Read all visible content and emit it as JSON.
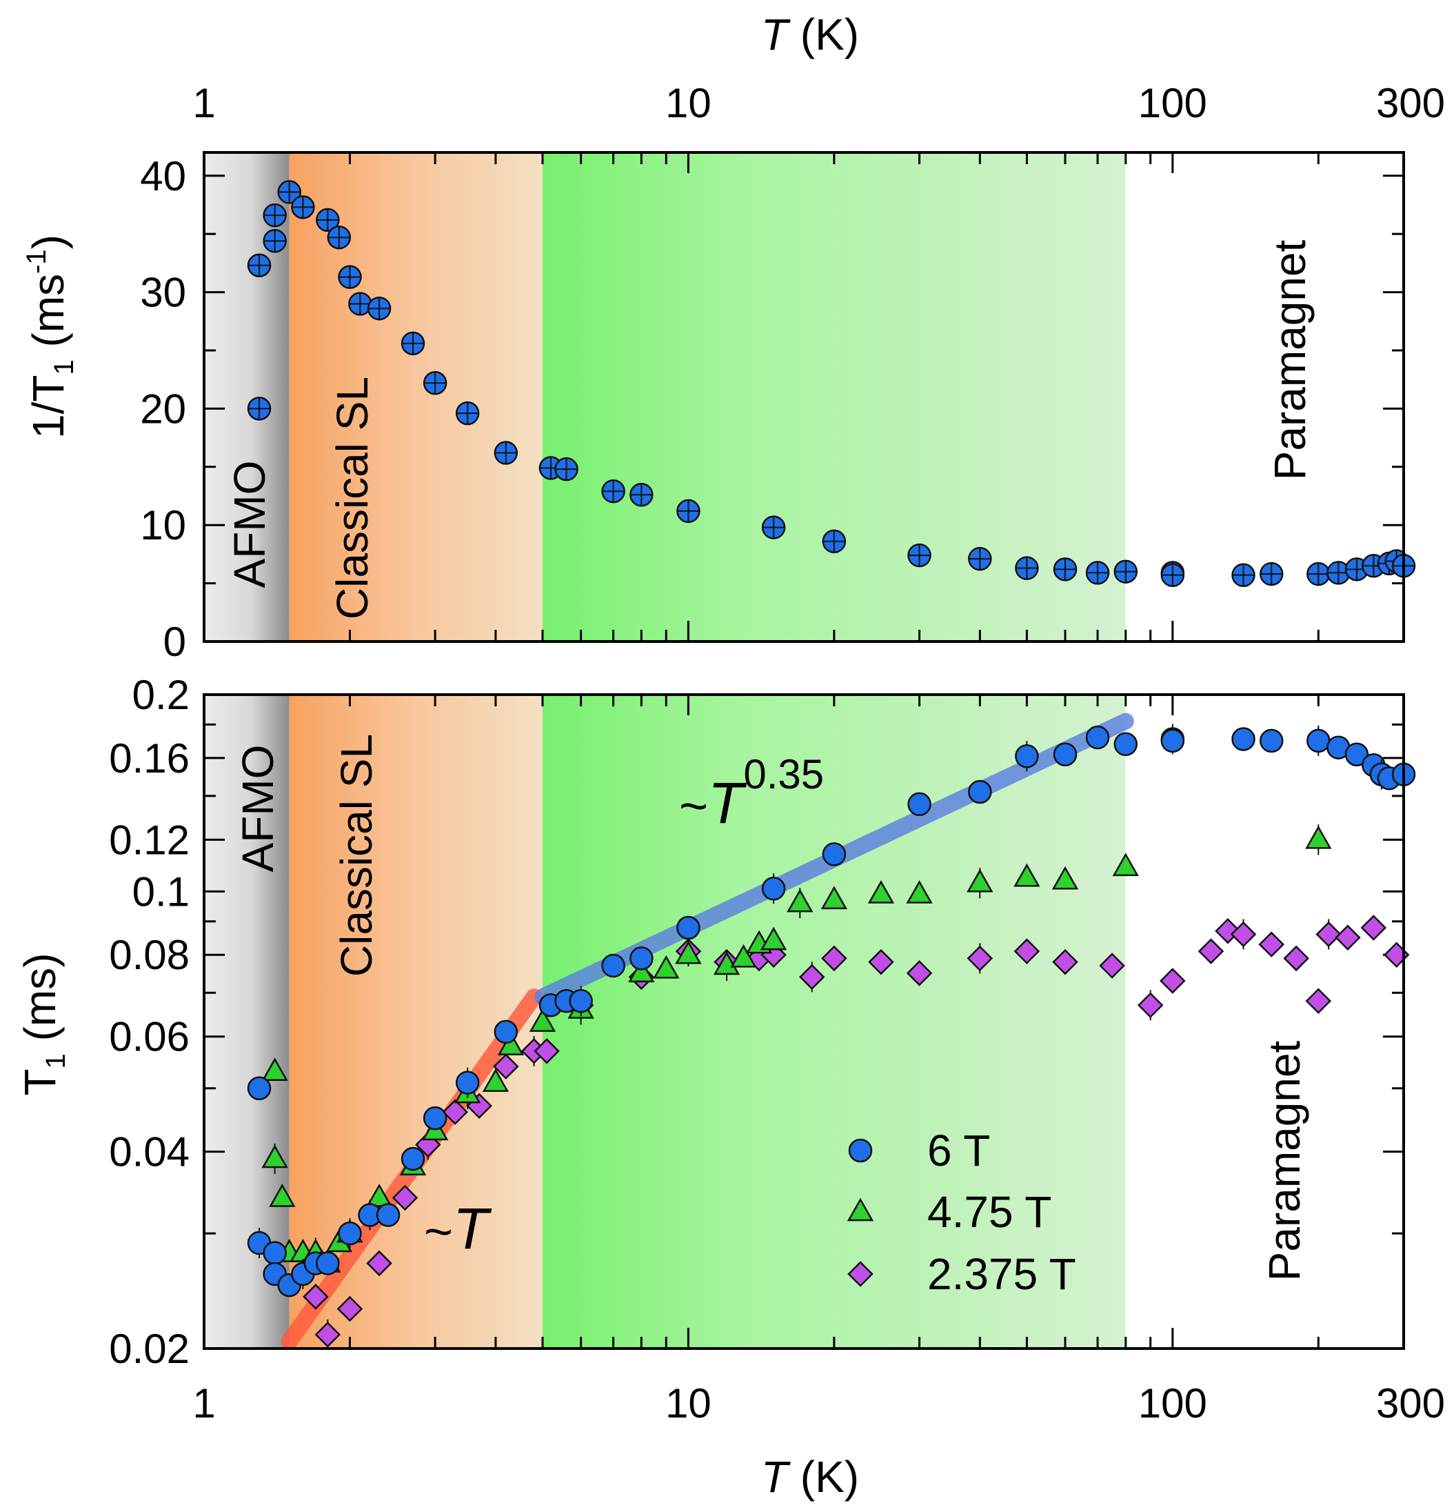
{
  "chart_data": [
    {
      "panel": "top",
      "type": "scatter",
      "title": "",
      "xlabel_top": {
        "italic": "T",
        "rest": " (K)"
      },
      "ylabel": "1/T",
      "ylabel_sub": "1",
      "ylabel_units": " (ms",
      "ylabel_sup": "-1",
      "ylabel_close": ")",
      "xscale": "log",
      "xlim": [
        1,
        300
      ],
      "ylim": [
        0,
        42
      ],
      "x_ticks": [
        1,
        10,
        100,
        300
      ],
      "x_tick_labels": [
        "1",
        "10",
        "100",
        "300"
      ],
      "y_ticks": [
        0,
        10,
        20,
        30,
        40
      ],
      "y_tick_labels": [
        "0",
        "10",
        "20",
        "30",
        "40"
      ],
      "regions": [
        {
          "name": "AFMO",
          "label": "AFMO",
          "from": 1,
          "to": 1.5
        },
        {
          "name": "classical-sl",
          "label": "Classical SL",
          "from": 1.5,
          "to": 5
        },
        {
          "name": "green",
          "label": "",
          "from": 5,
          "to": 80
        },
        {
          "name": "paramagnet",
          "label": "Paramagnet",
          "from": 80,
          "to": 300
        }
      ],
      "series": [
        {
          "name": "6 T",
          "color": "#1f6fe8",
          "marker": "circle",
          "x": [
            1.3,
            1.3,
            1.4,
            1.4,
            1.5,
            1.6,
            1.8,
            1.9,
            2.0,
            2.1,
            2.3,
            2.7,
            3.0,
            3.5,
            4.2,
            5.2,
            5.6,
            7.0,
            8.0,
            10,
            15,
            20,
            30,
            40,
            50,
            60,
            70,
            80,
            100,
            100,
            140,
            160,
            200,
            220,
            240,
            260,
            280,
            290,
            300
          ],
          "y": [
            20.0,
            32.3,
            34.4,
            36.6,
            38.6,
            37.3,
            36.2,
            34.7,
            31.3,
            29.0,
            28.6,
            25.6,
            22.2,
            19.6,
            16.2,
            14.9,
            14.8,
            12.9,
            12.6,
            11.2,
            9.8,
            8.6,
            7.4,
            7.1,
            6.3,
            6.2,
            5.9,
            6.0,
            5.9,
            5.7,
            5.7,
            5.8,
            5.8,
            5.9,
            6.2,
            6.5,
            6.7,
            6.9,
            6.5
          ]
        }
      ]
    },
    {
      "panel": "bottom",
      "type": "scatter",
      "title": "",
      "xlabel": {
        "italic": "T",
        "rest": " (K)"
      },
      "ylabel": "T",
      "ylabel_sub": "1",
      "ylabel_units": " (ms)",
      "xscale": "log",
      "yscale": "log",
      "xlim": [
        1,
        300
      ],
      "ylim": [
        0.02,
        0.2
      ],
      "x_ticks": [
        1,
        10,
        100,
        300
      ],
      "x_tick_labels": [
        "1",
        "10",
        "100",
        "300"
      ],
      "y_ticks": [
        0.02,
        0.04,
        0.06,
        0.08,
        0.1,
        0.12,
        0.16,
        0.2
      ],
      "y_tick_labels": [
        "0.02",
        "0.04",
        "0.06",
        "0.08",
        "0.1",
        "0.12",
        "0.16",
        "0.2"
      ],
      "regions": [
        {
          "name": "AFMO",
          "label": "AFMO",
          "from": 1,
          "to": 1.5
        },
        {
          "name": "classical-sl",
          "label": "Classical SL",
          "from": 1.5,
          "to": 5
        },
        {
          "name": "green",
          "label": "",
          "from": 5,
          "to": 80
        },
        {
          "name": "paramagnet",
          "label": "Paramagnet",
          "from": 80,
          "to": 300
        }
      ],
      "fits": [
        {
          "name": "linear-fit",
          "label_prefix": "~",
          "label_var": "T",
          "label_exp": "",
          "color": "#ff5a3c",
          "x": [
            1.5,
            4.8
          ],
          "y": [
            0.0205,
            0.069
          ]
        },
        {
          "name": "power-fit",
          "label_prefix": "~",
          "label_var": "T",
          "label_exp": "0.35",
          "color": "#5b7fe0",
          "x": [
            5.0,
            80
          ],
          "y": [
            0.069
          ],
          "exponent": 0.35
        }
      ],
      "legend": {
        "position": "lower-right"
      },
      "series": [
        {
          "name": "6 T",
          "color": "#1f6fe8",
          "marker": "circle",
          "x": [
            1.3,
            1.3,
            1.4,
            1.4,
            1.5,
            1.6,
            1.7,
            1.8,
            2.0,
            2.2,
            2.4,
            2.7,
            3.0,
            3.5,
            4.2,
            5.2,
            5.6,
            6.0,
            7.0,
            8.0,
            10,
            15,
            20,
            30,
            40,
            50,
            60,
            70,
            80,
            100,
            100,
            140,
            160,
            200,
            220,
            240,
            260,
            270,
            280,
            300
          ],
          "y": [
            0.05,
            0.029,
            0.028,
            0.026,
            0.025,
            0.026,
            0.027,
            0.027,
            0.03,
            0.032,
            0.032,
            0.039,
            0.045,
            0.051,
            0.061,
            0.067,
            0.068,
            0.068,
            0.077,
            0.079,
            0.088,
            0.101,
            0.114,
            0.136,
            0.142,
            0.161,
            0.162,
            0.172,
            0.168,
            0.171,
            0.17,
            0.171,
            0.17,
            0.17,
            0.166,
            0.162,
            0.156,
            0.151,
            0.149,
            0.151
          ]
        },
        {
          "name": "4.75 T",
          "color": "#2ed12e",
          "marker": "triangle",
          "x": [
            1.4,
            1.4,
            1.45,
            1.5,
            1.6,
            1.7,
            1.75,
            1.8,
            1.9,
            2.0,
            2.3,
            2.7,
            3.0,
            3.5,
            4.0,
            4.3,
            5.0,
            6.0,
            8.0,
            9.0,
            10,
            12,
            13,
            14,
            15,
            17,
            20,
            25,
            30,
            40,
            50,
            60,
            80,
            200
          ],
          "y": [
            0.053,
            0.039,
            0.034,
            0.028,
            0.028,
            0.028,
            0.027,
            0.027,
            0.029,
            0.03,
            0.034,
            0.038,
            0.043,
            0.049,
            0.051,
            0.058,
            0.063,
            0.066,
            0.075,
            0.076,
            0.08,
            0.077,
            0.079,
            0.083,
            0.084,
            0.096,
            0.097,
            0.099,
            0.099,
            0.103,
            0.105,
            0.104,
            0.109,
            0.12
          ]
        },
        {
          "name": "2.375 T",
          "color": "#c24ee8",
          "marker": "diamond",
          "x": [
            1.7,
            1.8,
            2.0,
            2.3,
            2.6,
            2.9,
            3.3,
            3.7,
            4.2,
            4.8,
            5.1,
            6.0,
            8.0,
            10,
            12,
            14,
            15,
            18,
            20,
            25,
            30,
            40,
            50,
            60,
            75,
            90,
            100,
            120,
            130,
            140,
            160,
            180,
            200,
            210,
            230,
            260,
            290
          ],
          "y": [
            0.024,
            0.021,
            0.023,
            0.027,
            0.034,
            0.041,
            0.046,
            0.047,
            0.054,
            0.057,
            0.057,
            0.067,
            0.074,
            0.081,
            0.078,
            0.079,
            0.08,
            0.074,
            0.079,
            0.078,
            0.075,
            0.079,
            0.081,
            0.078,
            0.077,
            0.067,
            0.073,
            0.081,
            0.087,
            0.086,
            0.083,
            0.079,
            0.068,
            0.086,
            0.085,
            0.088,
            0.08
          ]
        }
      ]
    }
  ]
}
